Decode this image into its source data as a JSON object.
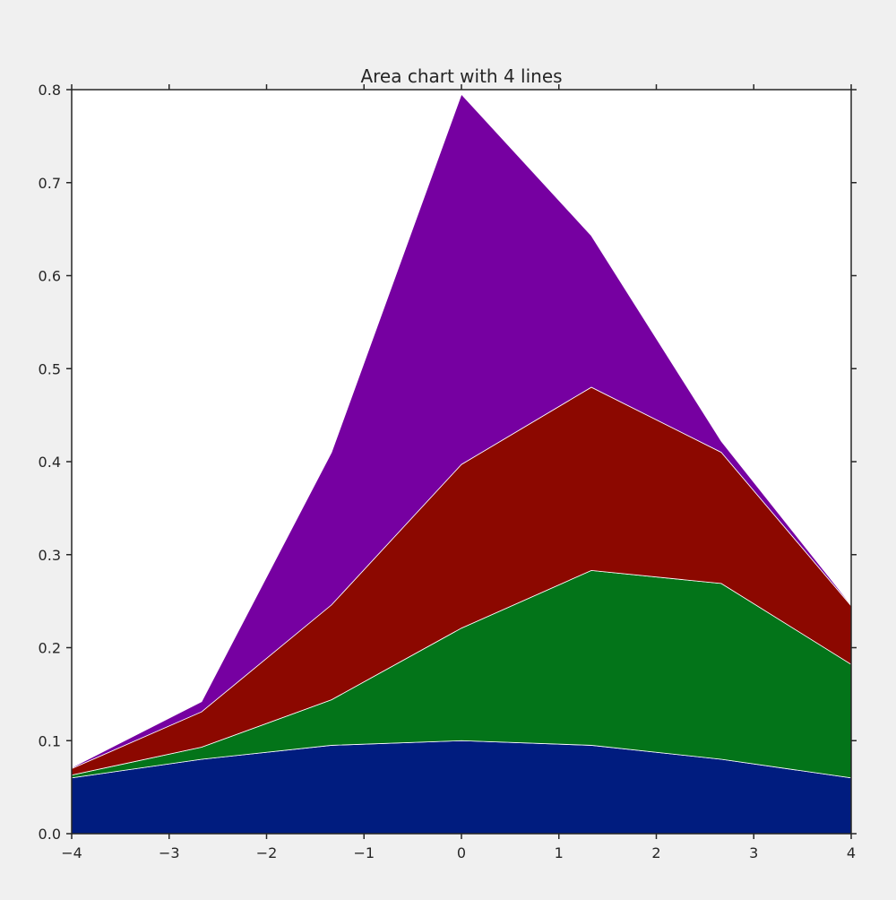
{
  "chart_data": {
    "type": "area",
    "stacked": true,
    "title": "Area chart with 4 lines",
    "xlabel": "",
    "ylabel": "",
    "x": [
      -4,
      -2.6667,
      -1.3333,
      0,
      1.3333,
      2.6667,
      4
    ],
    "xlim": [
      -4,
      4
    ],
    "ylim": [
      0,
      0.8
    ],
    "xticks": [
      -4,
      -3,
      -2,
      -1,
      0,
      1,
      2,
      3,
      4
    ],
    "xtick_labels": [
      "−4",
      "−3",
      "−2",
      "−1",
      "0",
      "1",
      "2",
      "3",
      "4"
    ],
    "yticks": [
      0,
      0.1,
      0.2,
      0.3,
      0.4,
      0.5,
      0.6,
      0.7,
      0.8
    ],
    "ytick_labels": [
      "0.0",
      "0.1",
      "0.2",
      "0.3",
      "0.4",
      "0.5",
      "0.6",
      "0.7",
      "0.8"
    ],
    "grid": false,
    "legend": "none",
    "series": [
      {
        "color": "#001c7f",
        "values": [
          0.06,
          0.08,
          0.095,
          0.1,
          0.095,
          0.08,
          0.06
        ]
      },
      {
        "color": "#037419",
        "values": [
          0.003,
          0.013,
          0.049,
          0.121,
          0.188,
          0.189,
          0.122
        ]
      },
      {
        "color": "#8c0800",
        "values": [
          0.007,
          0.038,
          0.102,
          0.176,
          0.197,
          0.141,
          0.063
        ]
      },
      {
        "color": "#7600a1",
        "values": [
          0.001,
          0.011,
          0.164,
          0.398,
          0.163,
          0.012,
          0.001
        ]
      }
    ],
    "colors": {
      "plot_background": "#ffffff",
      "figure_background": "#f0f0f0",
      "axes_edge": "#262626",
      "area_edge": "#ffffff"
    }
  }
}
